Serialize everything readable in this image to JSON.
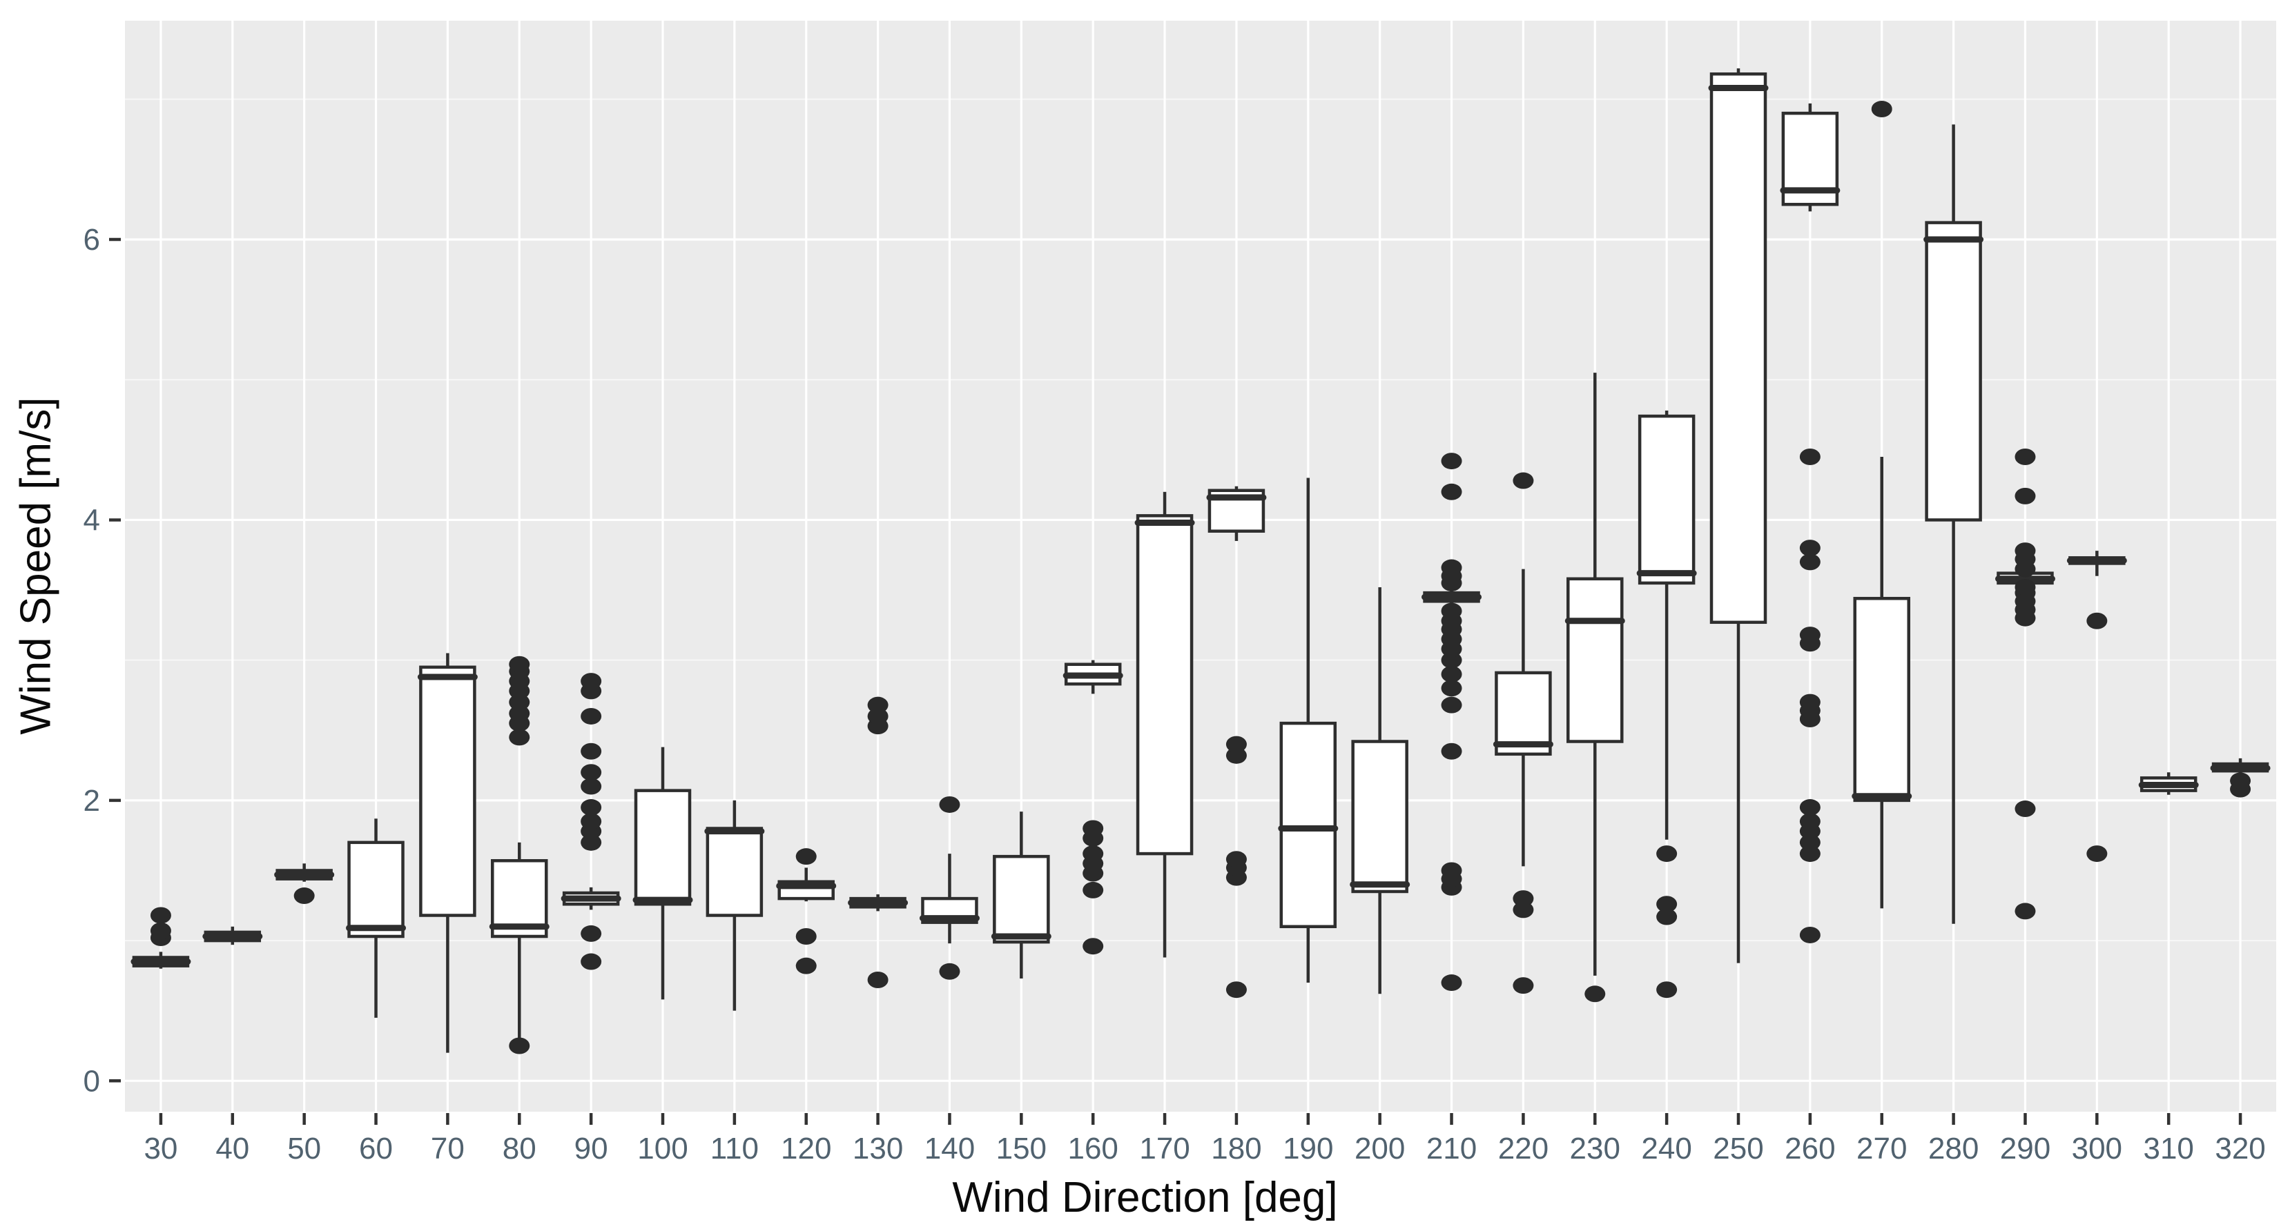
{
  "chart_data": {
    "type": "boxplot",
    "title": "",
    "xlabel": "Wind Direction [deg]",
    "ylabel": "Wind Speed [m/s]",
    "categories": [
      "30",
      "40",
      "50",
      "60",
      "70",
      "80",
      "90",
      "100",
      "110",
      "120",
      "130",
      "140",
      "150",
      "160",
      "170",
      "180",
      "190",
      "200",
      "210",
      "220",
      "230",
      "240",
      "250",
      "260",
      "270",
      "280",
      "290",
      "300",
      "310",
      "320"
    ],
    "ylim": [
      -0.22,
      7.56
    ],
    "ybreaks": [
      0,
      2,
      4,
      6
    ],
    "ybreak_labels": [
      "0",
      "2",
      "4",
      "6"
    ],
    "yminor": [
      1,
      3,
      5,
      7
    ],
    "grid": true,
    "legend": "none",
    "boxes": [
      {
        "dir": "30",
        "whislo": 0.8,
        "q1": 0.82,
        "med": 0.85,
        "q3": 0.88,
        "whishi": 0.92,
        "fliers": [
          1.02,
          1.07,
          1.18
        ]
      },
      {
        "dir": "40",
        "whislo": 0.97,
        "q1": 1.0,
        "med": 1.03,
        "q3": 1.06,
        "whishi": 1.1,
        "fliers": []
      },
      {
        "dir": "50",
        "whislo": 1.42,
        "q1": 1.44,
        "med": 1.47,
        "q3": 1.5,
        "whishi": 1.55,
        "fliers": [
          1.32
        ]
      },
      {
        "dir": "60",
        "whislo": 0.45,
        "q1": 1.03,
        "med": 1.09,
        "q3": 1.7,
        "whishi": 1.87,
        "fliers": []
      },
      {
        "dir": "70",
        "whislo": 0.2,
        "q1": 1.18,
        "med": 2.88,
        "q3": 2.95,
        "whishi": 3.05,
        "fliers": []
      },
      {
        "dir": "80",
        "whislo": 0.3,
        "q1": 1.03,
        "med": 1.1,
        "q3": 1.57,
        "whishi": 1.7,
        "fliers": [
          0.25,
          2.45,
          2.55,
          2.62,
          2.7,
          2.78,
          2.85,
          2.92,
          2.97
        ]
      },
      {
        "dir": "90",
        "whislo": 1.22,
        "q1": 1.26,
        "med": 1.3,
        "q3": 1.34,
        "whishi": 1.38,
        "fliers": [
          0.85,
          1.05,
          1.7,
          1.78,
          1.85,
          1.95,
          2.1,
          2.2,
          2.35,
          2.6,
          2.78,
          2.85
        ]
      },
      {
        "dir": "100",
        "whislo": 0.58,
        "q1": 1.26,
        "med": 1.29,
        "q3": 2.07,
        "whishi": 2.38,
        "fliers": []
      },
      {
        "dir": "110",
        "whislo": 0.5,
        "q1": 1.18,
        "med": 1.78,
        "q3": 1.8,
        "whishi": 2.0,
        "fliers": []
      },
      {
        "dir": "120",
        "whislo": 1.28,
        "q1": 1.3,
        "med": 1.39,
        "q3": 1.42,
        "whishi": 1.52,
        "fliers": [
          0.82,
          1.03,
          1.6
        ]
      },
      {
        "dir": "130",
        "whislo": 1.21,
        "q1": 1.24,
        "med": 1.27,
        "q3": 1.3,
        "whishi": 1.33,
        "fliers": [
          0.72,
          2.53,
          2.6,
          2.68
        ]
      },
      {
        "dir": "140",
        "whislo": 0.98,
        "q1": 1.13,
        "med": 1.16,
        "q3": 1.3,
        "whishi": 1.62,
        "fliers": [
          0.78,
          1.97
        ]
      },
      {
        "dir": "150",
        "whislo": 0.73,
        "q1": 0.99,
        "med": 1.03,
        "q3": 1.6,
        "whishi": 1.92,
        "fliers": []
      },
      {
        "dir": "160",
        "whislo": 2.76,
        "q1": 2.83,
        "med": 2.89,
        "q3": 2.97,
        "whishi": 3.0,
        "fliers": [
          0.96,
          1.36,
          1.48,
          1.55,
          1.62,
          1.73,
          1.8
        ]
      },
      {
        "dir": "170",
        "whislo": 0.88,
        "q1": 1.62,
        "med": 3.98,
        "q3": 4.03,
        "whishi": 4.2,
        "fliers": []
      },
      {
        "dir": "180",
        "whislo": 3.85,
        "q1": 3.92,
        "med": 4.16,
        "q3": 4.21,
        "whishi": 4.24,
        "fliers": [
          0.65,
          1.45,
          1.52,
          1.58,
          2.32,
          2.4
        ]
      },
      {
        "dir": "190",
        "whislo": 0.7,
        "q1": 1.1,
        "med": 1.8,
        "q3": 2.55,
        "whishi": 4.3,
        "fliers": []
      },
      {
        "dir": "200",
        "whislo": 0.62,
        "q1": 1.35,
        "med": 1.4,
        "q3": 2.42,
        "whishi": 3.52,
        "fliers": []
      },
      {
        "dir": "210",
        "whislo": 3.3,
        "q1": 3.42,
        "med": 3.45,
        "q3": 3.48,
        "whishi": 3.52,
        "fliers": [
          0.7,
          1.38,
          1.44,
          1.5,
          2.35,
          2.68,
          2.8,
          2.9,
          3.0,
          3.08,
          3.15,
          3.22,
          3.28,
          3.35,
          3.55,
          3.6,
          3.66,
          4.2,
          4.42
        ]
      },
      {
        "dir": "220",
        "whislo": 1.53,
        "q1": 2.33,
        "med": 2.4,
        "q3": 2.91,
        "whishi": 3.65,
        "fliers": [
          0.68,
          1.22,
          1.3,
          4.28
        ]
      },
      {
        "dir": "230",
        "whislo": 0.75,
        "q1": 2.42,
        "med": 3.28,
        "q3": 3.58,
        "whishi": 5.05,
        "fliers": [
          0.62
        ]
      },
      {
        "dir": "240",
        "whislo": 1.72,
        "q1": 3.55,
        "med": 3.62,
        "q3": 4.74,
        "whishi": 4.78,
        "fliers": [
          0.65,
          1.17,
          1.26,
          1.62
        ]
      },
      {
        "dir": "250",
        "whislo": 0.84,
        "q1": 3.27,
        "med": 7.08,
        "q3": 7.18,
        "whishi": 7.22,
        "fliers": []
      },
      {
        "dir": "260",
        "whislo": 6.2,
        "q1": 6.25,
        "med": 6.35,
        "q3": 6.9,
        "whishi": 6.97,
        "fliers": [
          1.04,
          1.62,
          1.7,
          1.78,
          1.85,
          1.95,
          2.58,
          2.64,
          2.7,
          3.12,
          3.18,
          3.7,
          3.8,
          4.45
        ]
      },
      {
        "dir": "270",
        "whislo": 1.23,
        "q1": 2.0,
        "med": 2.03,
        "q3": 3.44,
        "whishi": 4.45,
        "fliers": [
          6.93
        ]
      },
      {
        "dir": "280",
        "whislo": 1.12,
        "q1": 4.0,
        "med": 6.0,
        "q3": 6.12,
        "whishi": 6.82,
        "fliers": []
      },
      {
        "dir": "290",
        "whislo": 3.45,
        "q1": 3.55,
        "med": 3.58,
        "q3": 3.62,
        "whishi": 3.7,
        "fliers": [
          1.21,
          1.94,
          3.3,
          3.36,
          3.42,
          3.48,
          3.52,
          3.65,
          3.72,
          3.78,
          4.17,
          4.45
        ]
      },
      {
        "dir": "300",
        "whislo": 3.6,
        "q1": 3.69,
        "med": 3.71,
        "q3": 3.73,
        "whishi": 3.78,
        "fliers": [
          1.62,
          3.28
        ]
      },
      {
        "dir": "310",
        "whislo": 2.04,
        "q1": 2.07,
        "med": 2.11,
        "q3": 2.16,
        "whishi": 2.2,
        "fliers": []
      },
      {
        "dir": "320",
        "whislo": 2.1,
        "q1": 2.21,
        "med": 2.23,
        "q3": 2.26,
        "whishi": 2.3,
        "fliers": [
          2.08,
          2.14
        ]
      }
    ]
  },
  "colors": {
    "panel_background": "#ebebeb",
    "grid_major": "#ffffff",
    "grid_minor": "#f7f7f7",
    "box_stroke": "#2e2e2e",
    "box_fill": "#ffffff",
    "flier_fill": "#2a2a2a",
    "tick_label": "#51626f",
    "tick_mark": "#333333",
    "axis_title": "#0a0a0a"
  }
}
